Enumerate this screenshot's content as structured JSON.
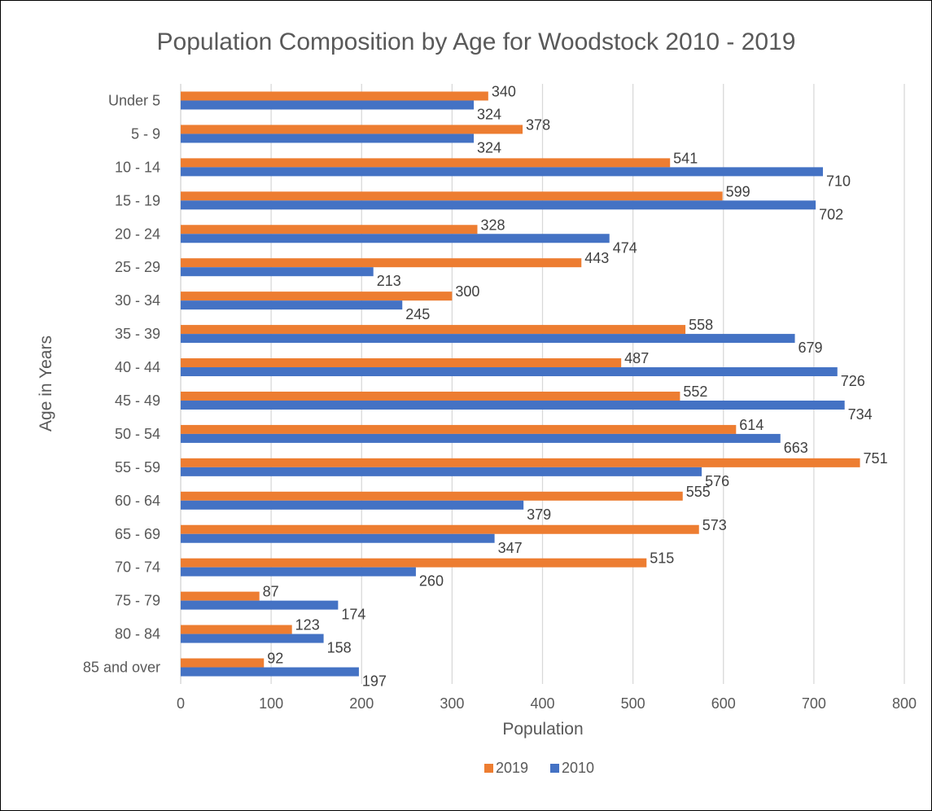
{
  "chart_data": {
    "type": "bar",
    "orientation": "horizontal",
    "title": "Population Composition by Age for Woodstock 2010 - 2019",
    "xlabel": "Population",
    "ylabel": "Age in Years",
    "xlim": [
      0,
      800
    ],
    "x_ticks": [
      0,
      100,
      200,
      300,
      400,
      500,
      600,
      700,
      800
    ],
    "grid": "vertical",
    "legend_position": "bottom",
    "categories": [
      "Under 5",
      "5 - 9",
      "10 - 14",
      "15 - 19",
      "20 - 24",
      "25 - 29",
      "30 - 34",
      "35 - 39",
      "40 - 44",
      "45 - 49",
      "50 - 54",
      "55 - 59",
      "60 - 64",
      "65 - 69",
      "70 - 74",
      "75 - 79",
      "80 - 84",
      "85 and over"
    ],
    "series": [
      {
        "name": "2019",
        "color": "#ED7D31",
        "values": [
          340,
          378,
          541,
          599,
          328,
          443,
          300,
          558,
          487,
          552,
          614,
          751,
          555,
          573,
          515,
          87,
          123,
          92
        ]
      },
      {
        "name": "2010",
        "color": "#4472C4",
        "values": [
          324,
          324,
          710,
          702,
          474,
          213,
          245,
          679,
          726,
          734,
          663,
          576,
          379,
          347,
          260,
          174,
          158,
          197
        ]
      }
    ]
  }
}
